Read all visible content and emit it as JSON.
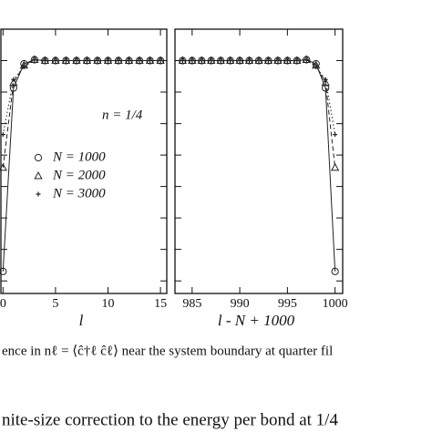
{
  "chart_data": [
    {
      "type": "line",
      "xlabel": "l",
      "annotation": "n = 1/4",
      "x": [
        0,
        1,
        2,
        3,
        4,
        5,
        6,
        7,
        8,
        9,
        10,
        11,
        12,
        13,
        14,
        15
      ],
      "xlim": [
        -0.2,
        15.6
      ],
      "xticks": [
        0,
        5,
        10,
        15
      ],
      "ylim": [
        -7.4,
        1
      ],
      "yticks": [
        -7,
        -6,
        -5,
        -4,
        -3,
        -2,
        -1,
        0,
        1
      ],
      "legend": "center-left",
      "series": [
        {
          "name": "N = 1000",
          "color": "#222222",
          "marker": "circle",
          "line": "solid",
          "values": [
            -6.7,
            -0.87,
            -0.1,
            0.03,
            0,
            0,
            0,
            0,
            0,
            0,
            0,
            0,
            0,
            0,
            0,
            0
          ]
        },
        {
          "name": "N = 2000",
          "color": "#222222",
          "marker": "triangle",
          "line": "dashed",
          "values": [
            -3.4,
            -0.7,
            -0.15,
            0.03,
            0,
            0,
            0,
            0,
            0,
            0,
            0,
            0,
            0,
            0,
            0,
            0
          ]
        },
        {
          "name": "N = 3000",
          "color": "#222222",
          "marker": "plus",
          "line": "dotted",
          "values": [
            -2.35,
            -0.6,
            -0.2,
            0.02,
            0,
            0,
            0,
            0,
            0,
            0,
            0,
            0,
            0,
            0,
            0,
            0
          ]
        }
      ]
    },
    {
      "type": "line",
      "xlabel": "l - N + 1000",
      "x": [
        984,
        985,
        986,
        987,
        988,
        989,
        990,
        991,
        992,
        993,
        994,
        995,
        996,
        997,
        998,
        999,
        1000
      ],
      "xlim": [
        983.2,
        1000.8
      ],
      "xticks": [
        985,
        990,
        995,
        1000
      ],
      "ylim": [
        -7.4,
        1
      ],
      "yticks": [
        -7,
        -6,
        -5,
        -4,
        -3,
        -2,
        -1,
        0,
        1
      ],
      "series": [
        {
          "color": "#222222",
          "marker": "circle",
          "line": "solid",
          "values": [
            0,
            0,
            0,
            0,
            0,
            0,
            0,
            0,
            0,
            0,
            0,
            0,
            0,
            0.03,
            -0.1,
            -0.87,
            -6.7
          ]
        },
        {
          "color": "#222222",
          "marker": "triangle",
          "line": "dashed",
          "values": [
            0,
            0,
            0,
            0,
            0,
            0,
            0,
            0,
            0,
            0,
            0,
            0,
            0,
            0.03,
            -0.15,
            -0.7,
            -3.4
          ]
        },
        {
          "color": "#222222",
          "marker": "plus",
          "line": "dotted",
          "values": [
            0,
            0,
            0,
            0,
            0,
            0,
            0,
            0,
            0,
            0,
            0,
            0,
            0,
            0.02,
            -0.2,
            -0.6,
            -2.35
          ]
        }
      ]
    }
  ],
  "caption": {
    "line1": "ence in nℓ = ⟨ĉ†ℓ ĉℓ⟩ near the system boundary at quarter fil",
    "line2": "nite-size correction to the energy per bond at 1/4"
  }
}
